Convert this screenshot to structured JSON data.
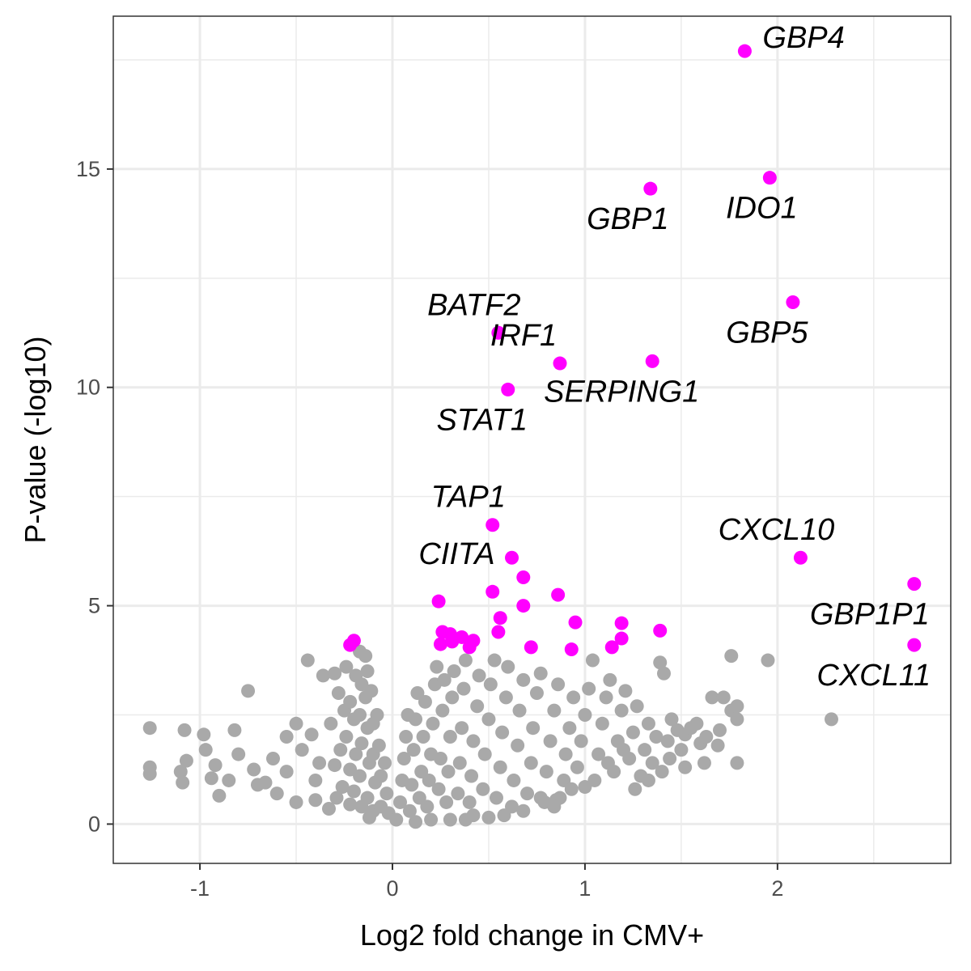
{
  "chart_data": {
    "type": "scatter",
    "title": "",
    "xlabel": "Log2 fold change in CMV+",
    "ylabel": "P-value (-log10)",
    "xlim": [
      -1.45,
      2.9
    ],
    "ylim": [
      -0.9,
      18.5
    ],
    "x_ticks": [
      -1,
      0,
      1,
      2
    ],
    "x_tick_labels": [
      "-1",
      "0",
      "1",
      "2"
    ],
    "y_ticks": [
      0,
      5,
      10,
      15
    ],
    "y_tick_labels": [
      "0",
      "5",
      "10",
      "15"
    ],
    "grid": true,
    "legend": "none",
    "colors": {
      "significant": "#ff00ff",
      "background": "#a9a9a9",
      "grid": "#ebebeb",
      "panel_border": "#333333"
    },
    "series": [
      {
        "role": "labeled",
        "color": "#ff00ff",
        "points": [
          {
            "x": 1.83,
            "y": 17.7,
            "label": "GBP4"
          },
          {
            "x": 1.96,
            "y": 14.8,
            "label": "IDO1"
          },
          {
            "x": 1.34,
            "y": 14.55,
            "label": "GBP1"
          },
          {
            "x": 2.08,
            "y": 11.95,
            "label": "GBP5"
          },
          {
            "x": 0.55,
            "y": 11.25,
            "label": "BATF2"
          },
          {
            "x": 1.35,
            "y": 10.6,
            "label": "SERPING1"
          },
          {
            "x": 0.87,
            "y": 10.55,
            "label": "IRF1"
          },
          {
            "x": 0.6,
            "y": 9.95,
            "label": "STAT1"
          },
          {
            "x": 0.52,
            "y": 6.85,
            "label": "TAP1"
          },
          {
            "x": 2.12,
            "y": 6.1,
            "label": "CXCL10"
          },
          {
            "x": 0.62,
            "y": 6.1,
            "label": "CIITA"
          },
          {
            "x": 2.71,
            "y": 5.5,
            "label": "GBP1P1"
          },
          {
            "x": 2.71,
            "y": 4.1,
            "label": "CXCL11"
          }
        ]
      },
      {
        "role": "significant",
        "color": "#ff00ff",
        "points": [
          [
            0.68,
            5.65
          ],
          [
            0.52,
            5.32
          ],
          [
            0.86,
            5.25
          ],
          [
            0.24,
            5.1
          ],
          [
            0.68,
            5.0
          ],
          [
            0.56,
            4.72
          ],
          [
            0.95,
            4.62
          ],
          [
            1.19,
            4.6
          ],
          [
            1.39,
            4.43
          ],
          [
            0.26,
            4.4
          ],
          [
            0.3,
            4.35
          ],
          [
            0.55,
            4.4
          ],
          [
            0.36,
            4.28
          ],
          [
            1.19,
            4.25
          ],
          [
            0.42,
            4.2
          ],
          [
            0.25,
            4.12
          ],
          [
            0.31,
            4.18
          ],
          [
            0.72,
            4.05
          ],
          [
            0.93,
            4.0
          ],
          [
            1.14,
            4.05
          ],
          [
            -0.2,
            4.2
          ],
          [
            -0.22,
            4.1
          ],
          [
            0.4,
            4.05
          ]
        ]
      },
      {
        "role": "not-significant",
        "color": "#a9a9a9",
        "points": [
          [
            -1.26,
            2.2
          ],
          [
            -1.26,
            1.3
          ],
          [
            -1.26,
            1.15
          ],
          [
            -1.08,
            2.15
          ],
          [
            -1.07,
            1.45
          ],
          [
            -1.1,
            1.2
          ],
          [
            -1.09,
            0.95
          ],
          [
            -0.98,
            2.05
          ],
          [
            -0.97,
            1.7
          ],
          [
            -0.92,
            1.35
          ],
          [
            -0.94,
            1.05
          ],
          [
            -0.9,
            0.65
          ],
          [
            -0.82,
            2.15
          ],
          [
            -0.8,
            1.6
          ],
          [
            -0.75,
            3.05
          ],
          [
            -0.72,
            1.25
          ],
          [
            -0.66,
            0.95
          ],
          [
            -0.62,
            1.5
          ],
          [
            -0.55,
            1.2
          ],
          [
            -0.5,
            2.3
          ],
          [
            -0.44,
            3.75
          ],
          [
            -0.42,
            2.05
          ],
          [
            -0.4,
            1.0
          ],
          [
            -0.36,
            3.4
          ],
          [
            -0.3,
            3.45
          ],
          [
            -0.32,
            2.3
          ],
          [
            -0.3,
            1.35
          ],
          [
            -0.29,
            0.6
          ],
          [
            -0.28,
            3.0
          ],
          [
            -0.25,
            2.6
          ],
          [
            -0.27,
            1.7
          ],
          [
            -0.26,
            0.85
          ],
          [
            -0.24,
            3.6
          ],
          [
            -0.22,
            2.8
          ],
          [
            -0.24,
            2.0
          ],
          [
            -0.22,
            1.25
          ],
          [
            -0.22,
            0.45
          ],
          [
            -0.19,
            3.4
          ],
          [
            -0.2,
            2.4
          ],
          [
            -0.19,
            1.6
          ],
          [
            -0.2,
            0.75
          ],
          [
            -0.17,
            3.95
          ],
          [
            -0.16,
            3.2
          ],
          [
            -0.17,
            2.5
          ],
          [
            -0.16,
            1.85
          ],
          [
            -0.17,
            1.1
          ],
          [
            -0.16,
            0.4
          ],
          [
            -0.14,
            3.85
          ],
          [
            -0.13,
            3.5
          ],
          [
            -0.14,
            2.9
          ],
          [
            -0.13,
            2.2
          ],
          [
            -0.12,
            1.4
          ],
          [
            -0.13,
            0.6
          ],
          [
            -0.11,
            3.05
          ],
          [
            -0.1,
            2.3
          ],
          [
            -0.1,
            1.6
          ],
          [
            -0.09,
            0.95
          ],
          [
            -0.1,
            0.3
          ],
          [
            -0.08,
            2.5
          ],
          [
            -0.07,
            1.8
          ],
          [
            -0.06,
            1.1
          ],
          [
            -0.06,
            0.4
          ],
          [
            -0.04,
            1.4
          ],
          [
            -0.03,
            0.7
          ],
          [
            -0.02,
            0.25
          ],
          [
            -0.6,
            0.7
          ],
          [
            -0.5,
            0.5
          ],
          [
            -0.4,
            0.55
          ],
          [
            -0.33,
            0.35
          ],
          [
            -0.12,
            0.15
          ],
          [
            -0.7,
            0.9
          ],
          [
            -0.85,
            1.0
          ],
          [
            -0.55,
            2.0
          ],
          [
            -0.47,
            1.7
          ],
          [
            -0.38,
            1.4
          ],
          [
            0.02,
            0.1
          ],
          [
            0.04,
            0.5
          ],
          [
            0.05,
            1.0
          ],
          [
            0.06,
            1.5
          ],
          [
            0.07,
            2.0
          ],
          [
            0.08,
            2.5
          ],
          [
            0.09,
            0.3
          ],
          [
            0.1,
            0.9
          ],
          [
            0.11,
            1.7
          ],
          [
            0.12,
            2.4
          ],
          [
            0.13,
            3.0
          ],
          [
            0.14,
            0.6
          ],
          [
            0.15,
            1.2
          ],
          [
            0.16,
            2.0
          ],
          [
            0.17,
            2.8
          ],
          [
            0.18,
            0.4
          ],
          [
            0.19,
            1.0
          ],
          [
            0.2,
            1.6
          ],
          [
            0.21,
            2.3
          ],
          [
            0.22,
            3.2
          ],
          [
            0.23,
            3.6
          ],
          [
            0.24,
            0.8
          ],
          [
            0.25,
            1.5
          ],
          [
            0.26,
            2.6
          ],
          [
            0.27,
            3.3
          ],
          [
            0.28,
            0.5
          ],
          [
            0.29,
            1.2
          ],
          [
            0.3,
            2.0
          ],
          [
            0.31,
            2.9
          ],
          [
            0.32,
            3.5
          ],
          [
            0.34,
            0.7
          ],
          [
            0.35,
            1.4
          ],
          [
            0.36,
            2.2
          ],
          [
            0.37,
            3.1
          ],
          [
            0.38,
            3.75
          ],
          [
            0.4,
            0.5
          ],
          [
            0.41,
            1.1
          ],
          [
            0.42,
            1.9
          ],
          [
            0.44,
            2.7
          ],
          [
            0.45,
            3.4
          ],
          [
            0.47,
            0.8
          ],
          [
            0.48,
            1.6
          ],
          [
            0.5,
            2.4
          ],
          [
            0.51,
            3.2
          ],
          [
            0.53,
            3.75
          ],
          [
            0.54,
            0.6
          ],
          [
            0.56,
            1.3
          ],
          [
            0.57,
            2.1
          ],
          [
            0.59,
            2.9
          ],
          [
            0.6,
            3.6
          ],
          [
            0.62,
            0.4
          ],
          [
            0.63,
            1.0
          ],
          [
            0.65,
            1.8
          ],
          [
            0.66,
            2.6
          ],
          [
            0.68,
            3.3
          ],
          [
            0.7,
            0.7
          ],
          [
            0.72,
            1.4
          ],
          [
            0.73,
            2.2
          ],
          [
            0.75,
            3.0
          ],
          [
            0.77,
            3.45
          ],
          [
            0.79,
            0.5
          ],
          [
            0.8,
            1.2
          ],
          [
            0.82,
            1.9
          ],
          [
            0.84,
            2.6
          ],
          [
            0.86,
            3.2
          ],
          [
            0.87,
            0.6
          ],
          [
            0.89,
            1.0
          ],
          [
            0.9,
            1.6
          ],
          [
            0.92,
            2.2
          ],
          [
            0.94,
            2.9
          ],
          [
            0.96,
            1.3
          ],
          [
            0.98,
            1.9
          ],
          [
            1.0,
            2.5
          ],
          [
            1.02,
            3.1
          ],
          [
            1.04,
            3.75
          ],
          [
            1.05,
            1.0
          ],
          [
            1.07,
            1.6
          ],
          [
            1.09,
            2.3
          ],
          [
            1.11,
            2.9
          ],
          [
            1.13,
            3.3
          ],
          [
            1.15,
            1.2
          ],
          [
            1.17,
            1.9
          ],
          [
            1.19,
            2.6
          ],
          [
            1.21,
            3.05
          ],
          [
            1.23,
            1.5
          ],
          [
            1.25,
            2.1
          ],
          [
            1.27,
            2.7
          ],
          [
            1.29,
            1.1
          ],
          [
            1.31,
            1.7
          ],
          [
            1.33,
            2.3
          ],
          [
            1.35,
            1.4
          ],
          [
            1.37,
            2.0
          ],
          [
            1.39,
            3.7
          ],
          [
            1.41,
            3.45
          ],
          [
            1.43,
            1.9
          ],
          [
            1.45,
            2.4
          ],
          [
            1.48,
            2.15
          ],
          [
            1.5,
            1.7
          ],
          [
            1.52,
            2.05
          ],
          [
            1.55,
            2.2
          ],
          [
            1.58,
            2.3
          ],
          [
            1.6,
            1.85
          ],
          [
            1.63,
            2.0
          ],
          [
            1.66,
            2.9
          ],
          [
            1.69,
            1.8
          ],
          [
            1.72,
            2.9
          ],
          [
            1.76,
            2.6
          ],
          [
            1.79,
            2.7
          ],
          [
            1.79,
            2.4
          ],
          [
            1.79,
            1.4
          ],
          [
            1.76,
            3.85
          ],
          [
            1.95,
            3.75
          ],
          [
            2.28,
            2.4
          ],
          [
            1.7,
            2.15
          ],
          [
            1.62,
            1.4
          ],
          [
            1.52,
            1.3
          ],
          [
            1.44,
            1.5
          ],
          [
            1.4,
            1.2
          ],
          [
            1.33,
            1.0
          ],
          [
            1.26,
            0.8
          ],
          [
            1.2,
            1.7
          ],
          [
            1.12,
            1.4
          ],
          [
            1.0,
            0.85
          ],
          [
            0.93,
            0.8
          ],
          [
            0.85,
            0.55
          ],
          [
            0.84,
            0.4
          ],
          [
            0.77,
            0.6
          ],
          [
            0.68,
            0.3
          ],
          [
            0.58,
            0.2
          ],
          [
            0.5,
            0.15
          ],
          [
            0.42,
            0.2
          ],
          [
            0.38,
            0.1
          ],
          [
            0.3,
            0.1
          ],
          [
            0.2,
            0.1
          ],
          [
            0.12,
            0.05
          ]
        ]
      }
    ],
    "annotations": [
      "GBP4",
      "IDO1",
      "GBP1",
      "GBP5",
      "BATF2",
      "IRF1",
      "SERPING1",
      "STAT1",
      "TAP1",
      "CXCL10",
      "CIITA",
      "GBP1P1",
      "CXCL11"
    ]
  }
}
